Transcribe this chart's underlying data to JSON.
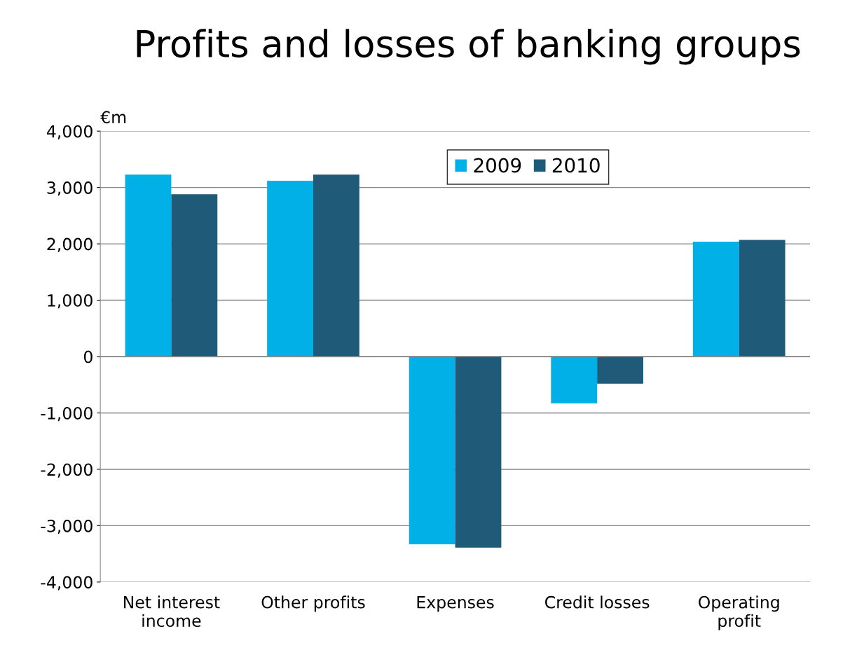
{
  "chart_data": {
    "type": "bar",
    "title": "Profits and losses of banking groups",
    "ylabel": "€m",
    "categories": [
      "Net interest\nincome",
      "Other profits",
      "Expenses",
      "Credit losses",
      "Operating\nprofit"
    ],
    "series": [
      {
        "name": "2009",
        "color": "#00b0e6",
        "values": [
          3230,
          3120,
          -3330,
          -830,
          2040
        ]
      },
      {
        "name": "2010",
        "color": "#1f5b78",
        "values": [
          2880,
          3230,
          -3390,
          -480,
          2070
        ]
      }
    ],
    "ylim": [
      -4000,
      4000
    ],
    "yticks": [
      {
        "value": -4000,
        "label": "-4,000"
      },
      {
        "value": -3000,
        "label": "-3,000"
      },
      {
        "value": -2000,
        "label": "-2,000"
      },
      {
        "value": -1000,
        "label": "-1,000"
      },
      0,
      {
        "value": 1000,
        "label": "1,000"
      },
      {
        "value": 2000,
        "label": "2,000"
      },
      {
        "value": 3000,
        "label": "3,000"
      },
      {
        "value": 4000,
        "label": "4,000"
      }
    ],
    "grid": "y",
    "legend": "top right"
  }
}
